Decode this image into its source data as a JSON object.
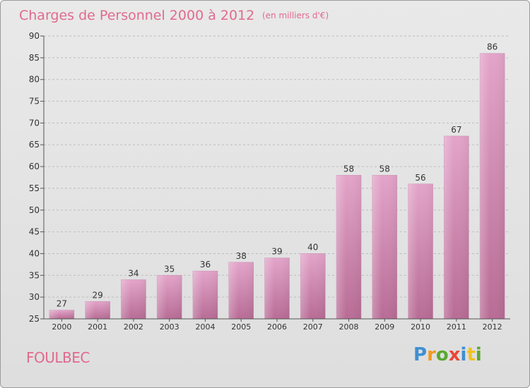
{
  "chart_data": {
    "type": "bar",
    "title": "Charges de Personnel 2000 à 2012",
    "subtitle": "(en milliers d'€)",
    "categories": [
      "2000",
      "2001",
      "2002",
      "2003",
      "2004",
      "2005",
      "2006",
      "2007",
      "2008",
      "2009",
      "2010",
      "2011",
      "2012"
    ],
    "values": [
      27,
      29,
      34,
      35,
      36,
      38,
      39,
      40,
      58,
      58,
      56,
      67,
      86
    ],
    "ylim": [
      25,
      90
    ],
    "yticks": [
      25,
      30,
      35,
      40,
      45,
      50,
      55,
      60,
      65,
      70,
      75,
      80,
      85,
      90
    ],
    "grid": true,
    "bar_color_top": "#e3a4c9",
    "bar_color_bottom": "#b86c95"
  },
  "commune": "FOULBEC",
  "logo": {
    "letters": [
      "P",
      "r",
      "o",
      "x",
      "i",
      "t",
      "i"
    ],
    "colors": [
      "#3f8fd2",
      "#f29a1f",
      "#5aa832",
      "#e8473a",
      "#3f8fd2",
      "#f2c21f",
      "#5aa832"
    ]
  }
}
